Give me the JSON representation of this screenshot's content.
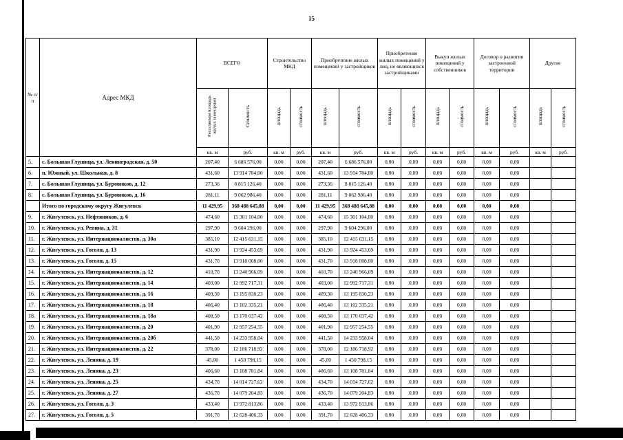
{
  "page": {
    "number": "15"
  },
  "table": {
    "corner": {
      "num_header": "№ п/п",
      "address_header": "Адрес МКД"
    },
    "groups": [
      {
        "label": "ВСЕГО",
        "cols": [
          "Расселяемая площадь жилых помещений",
          "Стоимость"
        ]
      },
      {
        "label": "Строительство МКД",
        "cols": [
          "площадь",
          "стоимость"
        ]
      },
      {
        "label": "Приобретение жилых помещений у застройщиков",
        "cols": [
          "площадь",
          "стоимость"
        ]
      },
      {
        "label": "Приобретение жилых помещений у лиц, не являющихся застройщиками",
        "cols": [
          "площадь",
          "стоимость"
        ]
      },
      {
        "label": "Выкуп жилых помещений у собственников",
        "cols": [
          "площадь",
          "стоимость"
        ]
      },
      {
        "label": "Договор о развитии застроенной территории",
        "cols": [
          "площадь",
          "стоимость"
        ]
      },
      {
        "label": "Другие",
        "cols": [
          "площадь",
          "стоимость"
        ]
      }
    ],
    "units": [
      "кв. м",
      "руб.",
      "кв. м",
      "руб.",
      "кв. м",
      "руб.",
      "кв. м",
      "руб.",
      "кв. м",
      "руб.",
      "кв. м",
      "руб.",
      "кв. м",
      "руб."
    ],
    "rows": [
      {
        "num": "5.",
        "address": "с. Большая Глушица, ул. Ленинградская, д. 50",
        "bold": false,
        "values": [
          "207,40",
          "6 686 576,00",
          "0,00",
          "0,00",
          "207,40",
          "6 686 576,00",
          "0,00",
          "0,00",
          "0,00",
          "0,00",
          "0,00",
          "0,00",
          "",
          ""
        ]
      },
      {
        "num": "6.",
        "address": "п. Южный, ул. Школьная, д. 8",
        "bold": false,
        "values": [
          "431,60",
          "13 914 784,00",
          "0,00",
          "0,00",
          "431,60",
          "13 914 784,00",
          "0,00",
          "0,00",
          "0,00",
          "0,00",
          "0,00",
          "0,00",
          "",
          ""
        ]
      },
      {
        "num": "7.",
        "address": "с. Большая Глушица, ул. Буровиков, д. 12",
        "bold": false,
        "values": [
          "273,36",
          "8 815 126,40",
          "0,00",
          "0,00",
          "273,36",
          "8 815 126,40",
          "0,00",
          "0,00",
          "0,00",
          "0,00",
          "0,00",
          "0,00",
          "",
          ""
        ]
      },
      {
        "num": "8.",
        "address": "с. Большая Глушица, ул. Буровиков, д. 16",
        "bold": false,
        "values": [
          "281,11",
          "9 062 986,40",
          "0,00",
          "0,00",
          "281,11",
          "9 062 986,40",
          "0,00",
          "0,00",
          "0,00",
          "0,00",
          "0,00",
          "0,00",
          "",
          ""
        ]
      },
      {
        "num": "",
        "address": "Итого по городскому округу Жигулевск",
        "bold": true,
        "values": [
          "11 429,95",
          "368 488 645,88",
          "0,00",
          "0,00",
          "11 429,95",
          "368 488 645,88",
          "0,00",
          "0,00",
          "0,00",
          "0,00",
          "0,00",
          "0,00",
          "",
          ""
        ]
      },
      {
        "num": "9.",
        "address": "г. Жигулевск, ул. Нефтяников, д. 6",
        "bold": false,
        "values": [
          "474,60",
          "15 301 104,00",
          "0,00",
          "0,00",
          "474,60",
          "15 301 104,00",
          "0,00",
          "0,00",
          "0,00",
          "0,00",
          "0,00",
          "0,00",
          "",
          ""
        ]
      },
      {
        "num": "10.",
        "address": "г. Жигулевск, ул. Репина, д. 31",
        "bold": false,
        "values": [
          "297,90",
          "9 604 296,00",
          "0,00",
          "0,00",
          "297,90",
          "9 604 296,00",
          "0,00",
          "0,00",
          "0,00",
          "0,00",
          "0,00",
          "0,00",
          "",
          ""
        ]
      },
      {
        "num": "11.",
        "address": "г. Жигулевск, ул. Интернационалистов, д. 30а",
        "bold": false,
        "values": [
          "385,10",
          "12 415 631,15",
          "0,00",
          "0,00",
          "385,10",
          "12 415 631,15",
          "0,00",
          "0,00",
          "0,00",
          "0,00",
          "0,00",
          "0,00",
          "",
          ""
        ]
      },
      {
        "num": "12.",
        "address": "г. Жигулевск, ул. Гоголя, д. 13",
        "bold": false,
        "values": [
          "431,90",
          "13 924 453,69",
          "0,00",
          "0,00",
          "431,90",
          "13 924 453,69",
          "0,00",
          "0,00",
          "0,00",
          "0,00",
          "0,00",
          "0,00",
          "",
          ""
        ]
      },
      {
        "num": "13.",
        "address": "г. Жигулевск, ул. Гоголя, д. 15",
        "bold": false,
        "values": [
          "431,70",
          "13 918 008,00",
          "0,00",
          "0,00",
          "431,70",
          "13 918 008,00",
          "0,00",
          "0,00",
          "0,00",
          "0,00",
          "0,00",
          "0,00",
          "",
          ""
        ]
      },
      {
        "num": "14.",
        "address": "г. Жигулевск, ул. Интернационалистов, д. 12",
        "bold": false,
        "values": [
          "410,70",
          "13 240 966,09",
          "0,00",
          "0,00",
          "410,70",
          "13 240 966,09",
          "0,00",
          "0,00",
          "0,00",
          "0,00",
          "0,00",
          "0,00",
          "",
          ""
        ]
      },
      {
        "num": "15.",
        "address": "г. Жигулевск, ул. Интернационалистов, д. 14",
        "bold": false,
        "values": [
          "403,00",
          "12 992 717,31",
          "0,00",
          "0,00",
          "403,00",
          "12 992 717,31",
          "0,00",
          "0,00",
          "0,00",
          "0,00",
          "0,00",
          "0,00",
          "",
          ""
        ]
      },
      {
        "num": "16.",
        "address": "г. Жигулевск, ул. Интернационалистов, д. 16",
        "bold": false,
        "values": [
          "409,30",
          "13 195 830,23",
          "0,00",
          "0,00",
          "409,30",
          "13 195 830,23",
          "0,00",
          "0,00",
          "0,00",
          "0,00",
          "0,00",
          "0,00",
          "",
          ""
        ]
      },
      {
        "num": "17.",
        "address": "г. Жигулевск, ул. Интернационалистов, д. 18",
        "bold": false,
        "values": [
          "406,40",
          "13 102 335,21",
          "0,00",
          "0,00",
          "406,40",
          "13 102 335,21",
          "0,00",
          "0,00",
          "0,00",
          "0,00",
          "0,00",
          "0,00",
          "",
          ""
        ]
      },
      {
        "num": "18.",
        "address": "г. Жигулевск, ул. Интернационалистов, д. 18а",
        "bold": false,
        "values": [
          "408,50",
          "13 170 037,42",
          "0,00",
          "0,00",
          "408,50",
          "13 170 037,42",
          "0,00",
          "0,00",
          "0,00",
          "0,00",
          "0,00",
          "0,00",
          "",
          ""
        ]
      },
      {
        "num": "19.",
        "address": "г. Жигулевск, ул. Интернационалистов, д. 20",
        "bold": false,
        "values": [
          "401,90",
          "12 957 254,55",
          "0,00",
          "0,00",
          "401,90",
          "12 957 254,55",
          "0,00",
          "0,00",
          "0,00",
          "0,00",
          "0,00",
          "0,00",
          "",
          ""
        ]
      },
      {
        "num": "20.",
        "address": "г. Жигулевск, ул. Интернационалистов, д. 20б",
        "bold": false,
        "values": [
          "441,50",
          "14 233 958,04",
          "0,00",
          "0,00",
          "441,50",
          "14 233 958,04",
          "0,00",
          "0,00",
          "0,00",
          "0,00",
          "0,00",
          "0,00",
          "",
          ""
        ]
      },
      {
        "num": "21.",
        "address": "г. Жигулевск, ул. Интернационалистов, д. 22",
        "bold": false,
        "values": [
          "378,00",
          "12 186 718,92",
          "0,00",
          "0,00",
          "378,00",
          "12 186 718,92",
          "0,00",
          "0,00",
          "0,00",
          "0,00",
          "0,00",
          "0,00",
          "",
          ""
        ]
      },
      {
        "num": "22.",
        "address": "г. Жигулевск, ул. Ленина, д. 19",
        "bold": false,
        "values": [
          "45,00",
          "1 450 798,15",
          "0,00",
          "0,00",
          "45,00",
          "1 450 798,15",
          "0,00",
          "0,00",
          "0,00",
          "0,00",
          "0,00",
          "0,00",
          "",
          ""
        ]
      },
      {
        "num": "23.",
        "address": "г. Жигулевск, ул. Ленина, д. 23",
        "bold": false,
        "values": [
          "406,60",
          "13 108 781,84",
          "0,00",
          "0,00",
          "406,60",
          "13 108 781,84",
          "0,00",
          "0,00",
          "0,00",
          "0,00",
          "0,00",
          "0,00",
          "",
          ""
        ]
      },
      {
        "num": "24.",
        "address": "г. Жигулевск, ул. Ленина, д. 25",
        "bold": false,
        "values": [
          "434,70",
          "14 014 727,62",
          "0,00",
          "0,00",
          "434,70",
          "14 014 727,62",
          "0,00",
          "0,00",
          "0,00",
          "0,00",
          "0,00",
          "0,00",
          "",
          ""
        ]
      },
      {
        "num": "25.",
        "address": "г. Жигулевск, ул. Ленина, д. 27",
        "bold": false,
        "values": [
          "436,70",
          "14 079 204,83",
          "0,00",
          "0,00",
          "436,70",
          "14 079 204,83",
          "0,00",
          "0,00",
          "0,00",
          "0,00",
          "0,00",
          "0,00",
          "",
          ""
        ]
      },
      {
        "num": "26.",
        "address": "г. Жигулевск, ул. Гоголя, д. 3",
        "bold": false,
        "values": [
          "433,40",
          "13 972 813,86",
          "0,00",
          "0,00",
          "433,40",
          "13 972 813,86",
          "0,00",
          "0,00",
          "0,00",
          "0,00",
          "0,00",
          "0,00",
          "",
          ""
        ]
      },
      {
        "num": "27.",
        "address": "г. Жигулевск, ул. Гоголя, д. 5",
        "bold": false,
        "values": [
          "391,70",
          "12 628 406,33",
          "0,00",
          "0,00",
          "391,70",
          "12 628 406,33",
          "0,00",
          "0,00",
          "0,00",
          "0,00",
          "0,00",
          "0,00",
          "",
          ""
        ]
      }
    ]
  }
}
